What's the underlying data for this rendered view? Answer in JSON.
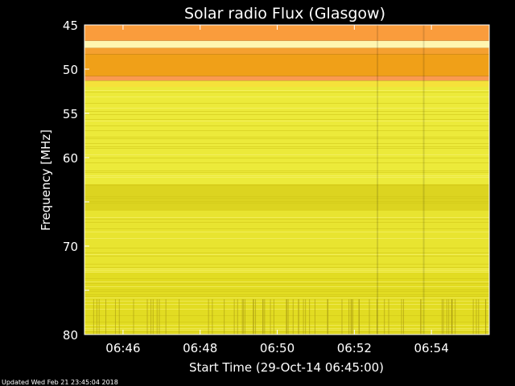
{
  "chart_data": {
    "type": "heatmap",
    "title": "Solar radio Flux (Glasgow)",
    "xlabel": "Start Time (29-Oct-14 06:45:00)",
    "ylabel": "Frequency [MHz]",
    "x_range_minutes_after_06_45": [
      0,
      10.5
    ],
    "x_ticks": [
      {
        "value": 1,
        "label": "06:46"
      },
      {
        "value": 3,
        "label": "06:48"
      },
      {
        "value": 5,
        "label": "06:50"
      },
      {
        "value": 7,
        "label": "06:52"
      },
      {
        "value": 9,
        "label": "06:54"
      }
    ],
    "y_range_mhz": [
      45,
      80
    ],
    "y_inverted": true,
    "y_ticks": [
      45,
      50,
      55,
      60,
      65,
      70,
      75,
      80
    ],
    "y_tick_labels": [
      "45",
      "50",
      "55",
      "60",
      "",
      "70",
      "",
      "80"
    ],
    "bands": [
      {
        "from_mhz": 45.0,
        "to_mhz": 46.8,
        "color": "#fa9c3c"
      },
      {
        "from_mhz": 46.8,
        "to_mhz": 47.6,
        "color": "#fff6b0"
      },
      {
        "from_mhz": 47.6,
        "to_mhz": 48.3,
        "color": "#f5a030"
      },
      {
        "from_mhz": 48.3,
        "to_mhz": 50.8,
        "color": "#f0a018"
      },
      {
        "from_mhz": 50.8,
        "to_mhz": 51.3,
        "color": "#fa9a50"
      },
      {
        "from_mhz": 51.3,
        "to_mhz": 52.0,
        "color": "#f5e23a"
      },
      {
        "from_mhz": 52.0,
        "to_mhz": 63.0,
        "color": "#ecea3a"
      },
      {
        "from_mhz": 63.0,
        "to_mhz": 66.0,
        "color": "#dcd420"
      },
      {
        "from_mhz": 66.0,
        "to_mhz": 73.0,
        "color": "#e8e430"
      },
      {
        "from_mhz": 73.0,
        "to_mhz": 80.0,
        "color": "#e2dc22"
      }
    ],
    "colors": {
      "background": "#000000",
      "text": "#ffffff"
    }
  },
  "footer": {
    "updated": "Updated Wed Feb 21 23:45:04 2018"
  }
}
